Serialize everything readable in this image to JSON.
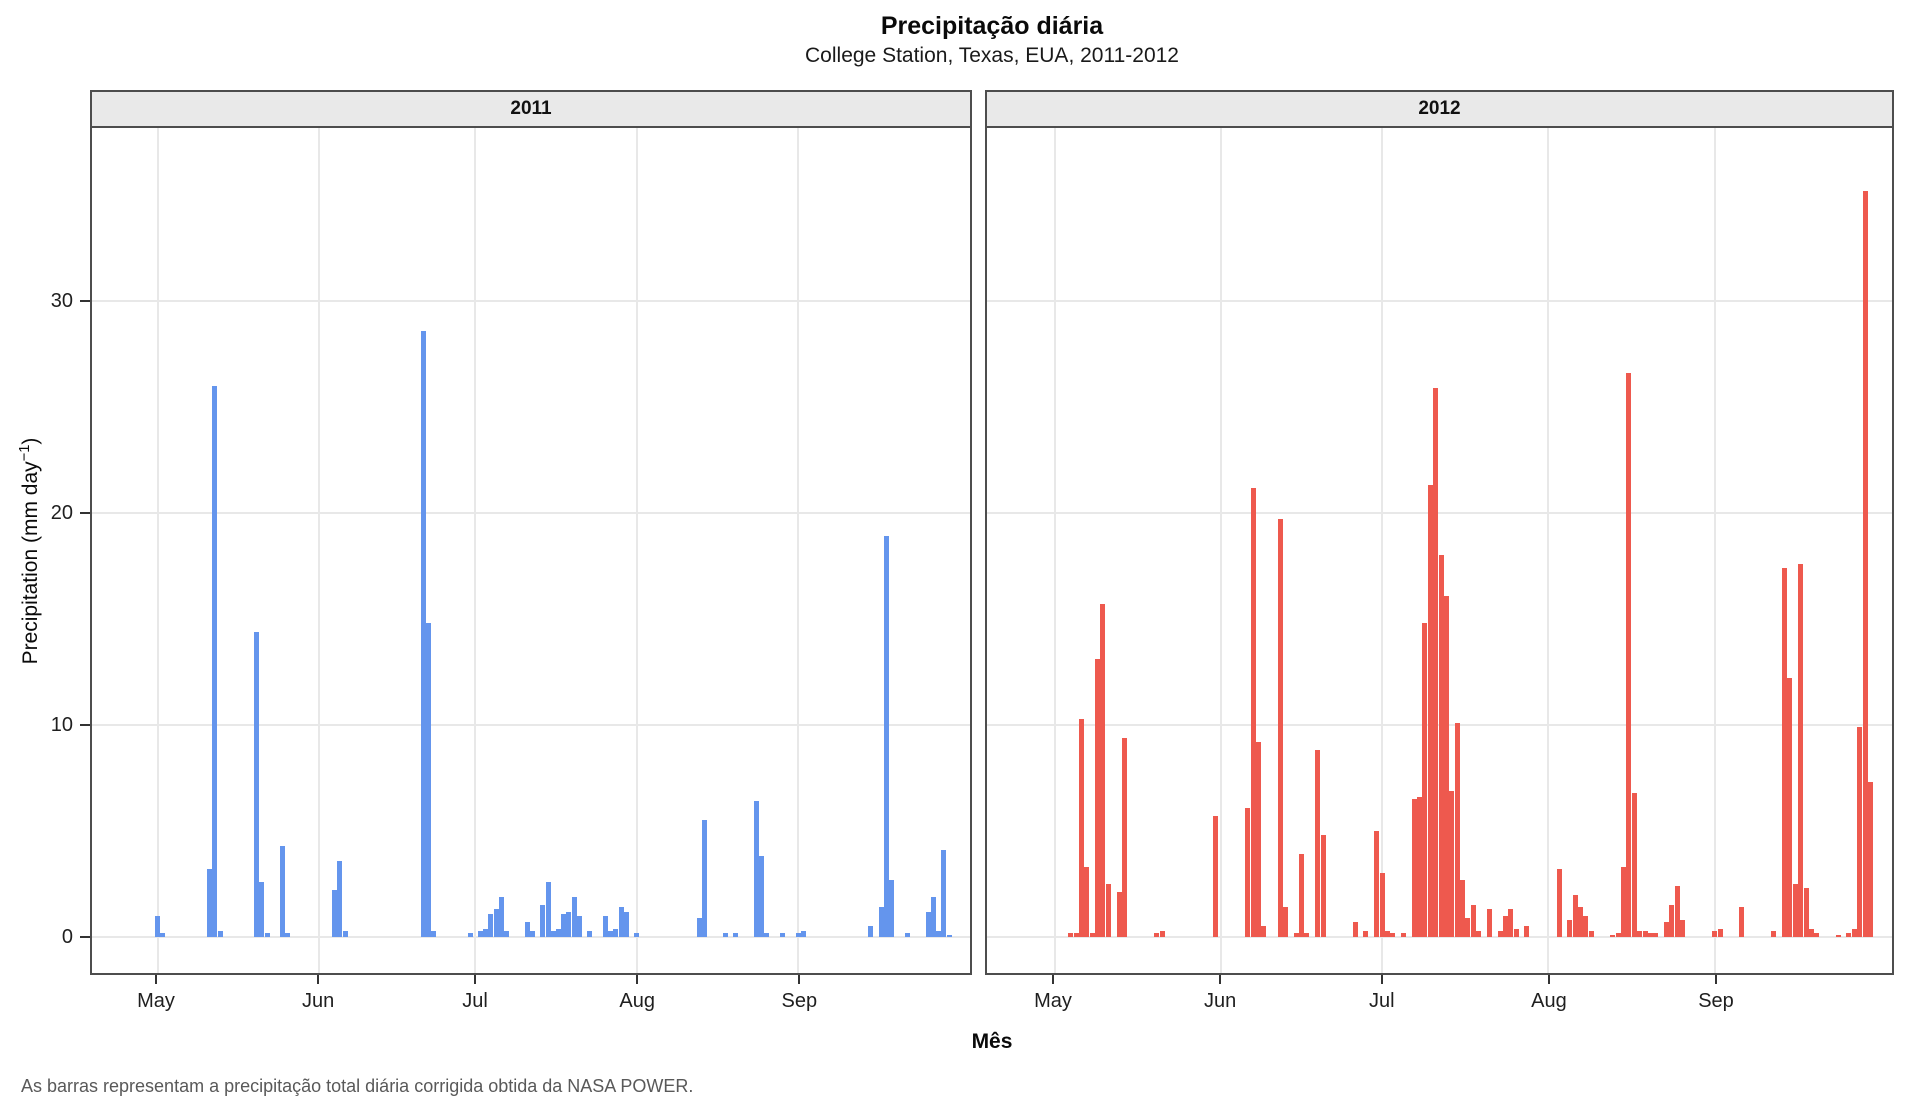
{
  "chart_data": {
    "type": "bar",
    "title": "Precipitação diária",
    "subtitle": "College Station, Texas, EUA, 2011-2012",
    "caption": "As barras representam a precipitação total diária corrigida obtida da NASA POWER.",
    "xlabel": "Mês",
    "ylabel": "Precipitation (mm day⁻¹)",
    "ylabel_prefix": "Precipitation (mm day",
    "ylabel_sup": "−1",
    "ylabel_suffix": ")",
    "ylim": [
      0,
      38
    ],
    "yticks": [
      0,
      10,
      20,
      30
    ],
    "grid": true,
    "legend_position": "none",
    "x_range": "May 1 – Sep 30 (daily)",
    "month_ticks": [
      {
        "label": "May",
        "day": 0
      },
      {
        "label": "Jun",
        "day": 31
      },
      {
        "label": "Jul",
        "day": 61
      },
      {
        "label": "Aug",
        "day": 92
      },
      {
        "label": "Sep",
        "day": 123
      }
    ],
    "colors": {
      "bar_2011": "#6495ED",
      "bar_2012": "#EE594E",
      "grid": "#E8E8E8",
      "panel_border": "#4D4D4D",
      "strip_bg": "#E9E9E9",
      "caption_text": "#595959"
    },
    "facets": [
      {
        "label": "2011",
        "year": 2011,
        "color": "#6495ED",
        "bars": [
          {
            "date": "2011-05-01",
            "mm": 1.0
          },
          {
            "date": "2011-05-02",
            "mm": 0.2
          },
          {
            "date": "2011-05-11",
            "mm": 3.2
          },
          {
            "date": "2011-05-12",
            "mm": 26.0
          },
          {
            "date": "2011-05-13",
            "mm": 0.3
          },
          {
            "date": "2011-05-20",
            "mm": 14.4
          },
          {
            "date": "2011-05-21",
            "mm": 2.6
          },
          {
            "date": "2011-05-22",
            "mm": 0.2
          },
          {
            "date": "2011-05-25",
            "mm": 4.3
          },
          {
            "date": "2011-05-26",
            "mm": 0.2
          },
          {
            "date": "2011-06-04",
            "mm": 2.2
          },
          {
            "date": "2011-06-05",
            "mm": 3.6
          },
          {
            "date": "2011-06-06",
            "mm": 0.3
          },
          {
            "date": "2011-06-21",
            "mm": 28.6
          },
          {
            "date": "2011-06-22",
            "mm": 14.8
          },
          {
            "date": "2011-06-23",
            "mm": 0.3
          },
          {
            "date": "2011-06-30",
            "mm": 0.2
          },
          {
            "date": "2011-07-02",
            "mm": 0.3
          },
          {
            "date": "2011-07-03",
            "mm": 0.4
          },
          {
            "date": "2011-07-04",
            "mm": 1.1
          },
          {
            "date": "2011-07-05",
            "mm": 1.3
          },
          {
            "date": "2011-07-06",
            "mm": 1.9
          },
          {
            "date": "2011-07-07",
            "mm": 0.3
          },
          {
            "date": "2011-07-11",
            "mm": 0.7
          },
          {
            "date": "2011-07-12",
            "mm": 0.3
          },
          {
            "date": "2011-07-14",
            "mm": 1.5
          },
          {
            "date": "2011-07-15",
            "mm": 2.6
          },
          {
            "date": "2011-07-16",
            "mm": 0.3
          },
          {
            "date": "2011-07-17",
            "mm": 0.4
          },
          {
            "date": "2011-07-18",
            "mm": 1.1
          },
          {
            "date": "2011-07-19",
            "mm": 1.2
          },
          {
            "date": "2011-07-20",
            "mm": 1.9
          },
          {
            "date": "2011-07-21",
            "mm": 1.0
          },
          {
            "date": "2011-07-23",
            "mm": 0.3
          },
          {
            "date": "2011-07-26",
            "mm": 1.0
          },
          {
            "date": "2011-07-27",
            "mm": 0.3
          },
          {
            "date": "2011-07-28",
            "mm": 0.4
          },
          {
            "date": "2011-07-29",
            "mm": 1.4
          },
          {
            "date": "2011-07-30",
            "mm": 1.2
          },
          {
            "date": "2011-08-01",
            "mm": 0.2
          },
          {
            "date": "2011-08-13",
            "mm": 0.9
          },
          {
            "date": "2011-08-14",
            "mm": 5.5
          },
          {
            "date": "2011-08-18",
            "mm": 0.2
          },
          {
            "date": "2011-08-20",
            "mm": 0.2
          },
          {
            "date": "2011-08-24",
            "mm": 6.4
          },
          {
            "date": "2011-08-25",
            "mm": 3.8
          },
          {
            "date": "2011-08-26",
            "mm": 0.2
          },
          {
            "date": "2011-08-29",
            "mm": 0.2
          },
          {
            "date": "2011-09-01",
            "mm": 0.2
          },
          {
            "date": "2011-09-02",
            "mm": 0.3
          },
          {
            "date": "2011-09-15",
            "mm": 0.5
          },
          {
            "date": "2011-09-17",
            "mm": 1.4
          },
          {
            "date": "2011-09-18",
            "mm": 18.9
          },
          {
            "date": "2011-09-19",
            "mm": 2.7
          },
          {
            "date": "2011-09-22",
            "mm": 0.2
          },
          {
            "date": "2011-09-26",
            "mm": 1.2
          },
          {
            "date": "2011-09-27",
            "mm": 1.9
          },
          {
            "date": "2011-09-28",
            "mm": 0.3
          },
          {
            "date": "2011-09-29",
            "mm": 4.1
          },
          {
            "date": "2011-09-30",
            "mm": 0.1
          }
        ]
      },
      {
        "label": "2012",
        "year": 2012,
        "color": "#EE594E",
        "bars": [
          {
            "date": "2012-05-04",
            "mm": 0.2
          },
          {
            "date": "2012-05-05",
            "mm": 0.2
          },
          {
            "date": "2012-05-06",
            "mm": 10.3
          },
          {
            "date": "2012-05-07",
            "mm": 3.3
          },
          {
            "date": "2012-05-08",
            "mm": 0.2
          },
          {
            "date": "2012-05-09",
            "mm": 13.1
          },
          {
            "date": "2012-05-10",
            "mm": 15.7
          },
          {
            "date": "2012-05-11",
            "mm": 2.5
          },
          {
            "date": "2012-05-13",
            "mm": 2.1
          },
          {
            "date": "2012-05-14",
            "mm": 9.4
          },
          {
            "date": "2012-05-20",
            "mm": 0.2
          },
          {
            "date": "2012-05-21",
            "mm": 0.3
          },
          {
            "date": "2012-05-31",
            "mm": 5.7
          },
          {
            "date": "2012-06-06",
            "mm": 6.1
          },
          {
            "date": "2012-06-07",
            "mm": 21.2
          },
          {
            "date": "2012-06-08",
            "mm": 9.2
          },
          {
            "date": "2012-06-09",
            "mm": 0.5
          },
          {
            "date": "2012-06-12",
            "mm": 19.7
          },
          {
            "date": "2012-06-13",
            "mm": 1.4
          },
          {
            "date": "2012-06-15",
            "mm": 0.2
          },
          {
            "date": "2012-06-16",
            "mm": 3.9
          },
          {
            "date": "2012-06-17",
            "mm": 0.2
          },
          {
            "date": "2012-06-19",
            "mm": 8.8
          },
          {
            "date": "2012-06-20",
            "mm": 4.8
          },
          {
            "date": "2012-06-26",
            "mm": 0.7
          },
          {
            "date": "2012-06-28",
            "mm": 0.3
          },
          {
            "date": "2012-06-30",
            "mm": 5.0
          },
          {
            "date": "2012-07-01",
            "mm": 3.0
          },
          {
            "date": "2012-07-02",
            "mm": 0.3
          },
          {
            "date": "2012-07-03",
            "mm": 0.2
          },
          {
            "date": "2012-07-05",
            "mm": 0.2
          },
          {
            "date": "2012-07-07",
            "mm": 6.5
          },
          {
            "date": "2012-07-08",
            "mm": 6.6
          },
          {
            "date": "2012-07-09",
            "mm": 14.8
          },
          {
            "date": "2012-07-10",
            "mm": 21.3
          },
          {
            "date": "2012-07-11",
            "mm": 25.9
          },
          {
            "date": "2012-07-12",
            "mm": 18.0
          },
          {
            "date": "2012-07-13",
            "mm": 16.1
          },
          {
            "date": "2012-07-14",
            "mm": 6.9
          },
          {
            "date": "2012-07-15",
            "mm": 10.1
          },
          {
            "date": "2012-07-16",
            "mm": 2.7
          },
          {
            "date": "2012-07-17",
            "mm": 0.9
          },
          {
            "date": "2012-07-18",
            "mm": 1.5
          },
          {
            "date": "2012-07-19",
            "mm": 0.3
          },
          {
            "date": "2012-07-21",
            "mm": 1.3
          },
          {
            "date": "2012-07-23",
            "mm": 0.3
          },
          {
            "date": "2012-07-24",
            "mm": 1.0
          },
          {
            "date": "2012-07-25",
            "mm": 1.3
          },
          {
            "date": "2012-07-26",
            "mm": 0.4
          },
          {
            "date": "2012-07-28",
            "mm": 0.5
          },
          {
            "date": "2012-08-03",
            "mm": 3.2
          },
          {
            "date": "2012-08-05",
            "mm": 0.8
          },
          {
            "date": "2012-08-06",
            "mm": 2.0
          },
          {
            "date": "2012-08-07",
            "mm": 1.4
          },
          {
            "date": "2012-08-08",
            "mm": 1.0
          },
          {
            "date": "2012-08-09",
            "mm": 0.3
          },
          {
            "date": "2012-08-13",
            "mm": 0.1
          },
          {
            "date": "2012-08-14",
            "mm": 0.2
          },
          {
            "date": "2012-08-15",
            "mm": 3.3
          },
          {
            "date": "2012-08-16",
            "mm": 26.6
          },
          {
            "date": "2012-08-17",
            "mm": 6.8
          },
          {
            "date": "2012-08-18",
            "mm": 0.3
          },
          {
            "date": "2012-08-19",
            "mm": 0.3
          },
          {
            "date": "2012-08-20",
            "mm": 0.2
          },
          {
            "date": "2012-08-21",
            "mm": 0.2
          },
          {
            "date": "2012-08-23",
            "mm": 0.7
          },
          {
            "date": "2012-08-24",
            "mm": 1.5
          },
          {
            "date": "2012-08-25",
            "mm": 2.4
          },
          {
            "date": "2012-08-26",
            "mm": 0.8
          },
          {
            "date": "2012-09-01",
            "mm": 0.3
          },
          {
            "date": "2012-09-02",
            "mm": 0.4
          },
          {
            "date": "2012-09-06",
            "mm": 1.4
          },
          {
            "date": "2012-09-12",
            "mm": 0.3
          },
          {
            "date": "2012-09-14",
            "mm": 17.4
          },
          {
            "date": "2012-09-15",
            "mm": 12.2
          },
          {
            "date": "2012-09-16",
            "mm": 2.5
          },
          {
            "date": "2012-09-17",
            "mm": 17.6
          },
          {
            "date": "2012-09-18",
            "mm": 2.3
          },
          {
            "date": "2012-09-19",
            "mm": 0.4
          },
          {
            "date": "2012-09-20",
            "mm": 0.2
          },
          {
            "date": "2012-09-24",
            "mm": 0.1
          },
          {
            "date": "2012-09-26",
            "mm": 0.2
          },
          {
            "date": "2012-09-27",
            "mm": 0.4
          },
          {
            "date": "2012-09-28",
            "mm": 9.9
          },
          {
            "date": "2012-09-29",
            "mm": 35.2
          },
          {
            "date": "2012-09-30",
            "mm": 7.3
          }
        ]
      }
    ]
  }
}
